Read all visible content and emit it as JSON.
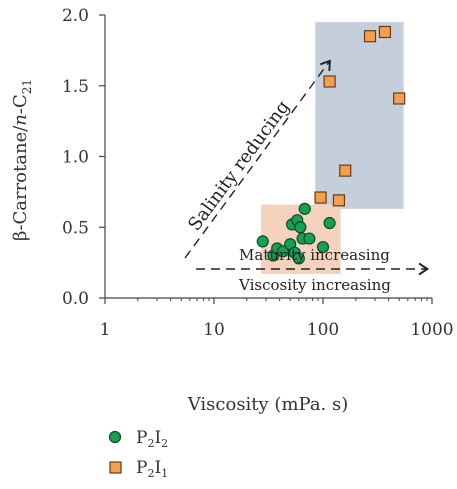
{
  "chart_data": {
    "type": "scatter",
    "xscale": "log",
    "xlim": [
      1,
      1000
    ],
    "ylim": [
      0,
      2.0
    ],
    "xticks": [
      "1",
      "10",
      "100",
      "1000"
    ],
    "yticks": [
      "0.0",
      "0.5",
      "1.0",
      "1.5",
      "2.0"
    ],
    "xlabel": "Viscosity (mPa. s)",
    "ylabel": "β-Carrotane/n-C21",
    "legend_position": "bottom-left",
    "series": [
      {
        "name": "P2I2",
        "marker": "circle",
        "color": "#1a9e55",
        "points": [
          [
            28,
            0.4
          ],
          [
            35,
            0.3
          ],
          [
            38,
            0.35
          ],
          [
            43,
            0.33
          ],
          [
            50,
            0.38
          ],
          [
            52,
            0.52
          ],
          [
            55,
            0.32
          ],
          [
            58,
            0.55
          ],
          [
            60,
            0.28
          ],
          [
            62,
            0.5
          ],
          [
            65,
            0.42
          ],
          [
            68,
            0.63
          ],
          [
            75,
            0.42
          ],
          [
            100,
            0.36
          ],
          [
            115,
            0.53
          ]
        ]
      },
      {
        "name": "P2I1",
        "marker": "square",
        "color": "#f0a050",
        "points": [
          [
            95,
            0.71
          ],
          [
            115,
            1.53
          ],
          [
            140,
            0.69
          ],
          [
            160,
            0.9
          ],
          [
            270,
            1.85
          ],
          [
            370,
            1.88
          ],
          [
            500,
            1.41
          ]
        ]
      }
    ],
    "regions": [
      {
        "x": [
          85,
          550
        ],
        "y": [
          0.63,
          1.95
        ],
        "color": "#c5cfdc"
      },
      {
        "x": [
          27,
          145
        ],
        "y": [
          0.17,
          0.66
        ],
        "color": "#f5d2bd"
      }
    ],
    "annotations": {
      "salinity": "Salinity reducing",
      "maturity": "Maturity increasing",
      "viscosity": "Viscosity increasing"
    }
  }
}
